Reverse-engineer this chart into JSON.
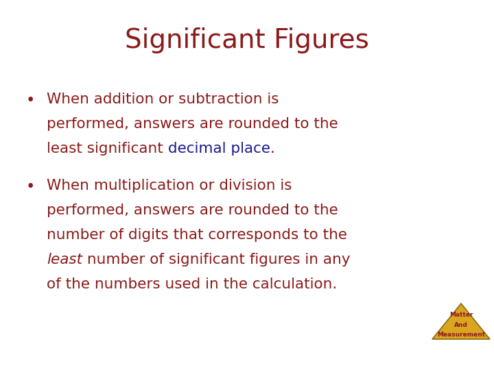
{
  "title": "Significant Figures",
  "title_color": "#8B1A1A",
  "title_fontsize": 28,
  "background_color": "#FFFFFF",
  "bullet1_lines": [
    "When addition or subtraction is",
    "performed, answers are rounded to the",
    "least significant decimal place."
  ],
  "bullet1_color": "#8B1A1A",
  "bullet1_highlight": "decimal place",
  "bullet1_highlight_color": "#1A1A8B",
  "bullet2_lines": [
    "When multiplication or division is",
    "performed, answers are rounded to the",
    "number of digits that corresponds to the",
    "least number of significant figures in any",
    "of the numbers used in the calculation."
  ],
  "bullet2_color": "#8B1A1A",
  "bullet2_italic_word": "least",
  "bullet_fontsize": 15.5,
  "watermark_text": [
    "Matter",
    "And",
    "Measurement"
  ],
  "watermark_color": "#8B1A1A",
  "triangle_color": "#DAA520",
  "triangle_outline": "#8B6914"
}
